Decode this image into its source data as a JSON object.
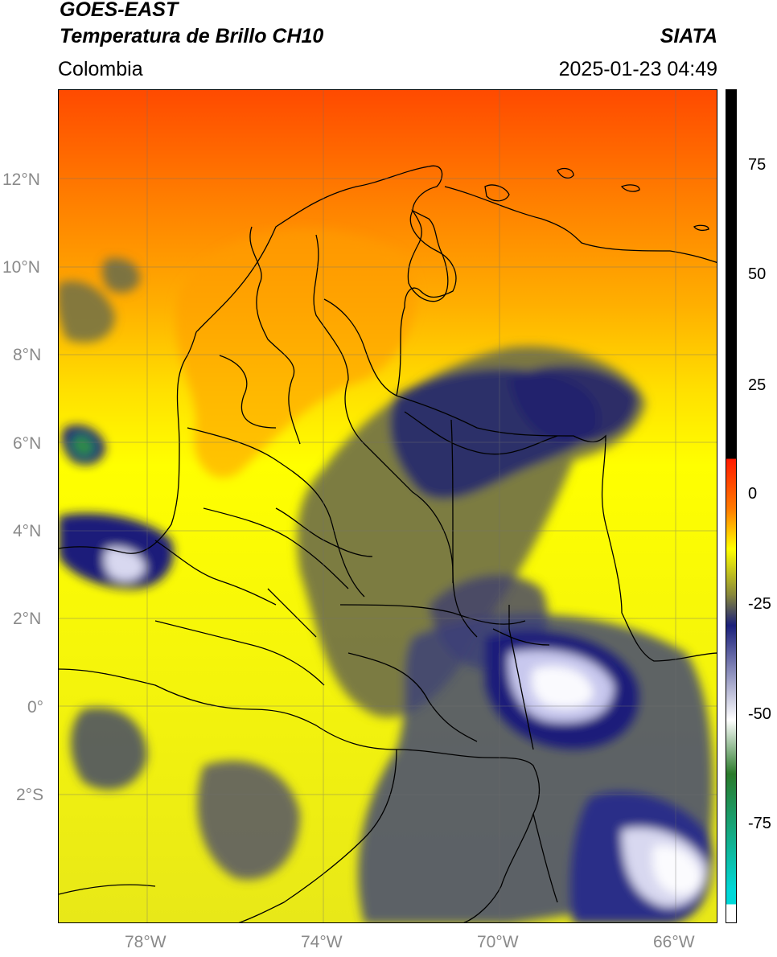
{
  "header": {
    "satellite": "GOES-EAST",
    "product": "Temperatura de Brillo CH10",
    "region": "Colombia",
    "source": "SIATA",
    "timestamp": "2025-01-23 04:49"
  },
  "map": {
    "lat_labels": [
      "12°N",
      "10°N",
      "8°N",
      "6°N",
      "4°N",
      "2°N",
      "0°",
      "2°S"
    ],
    "lon_labels": [
      "78°W",
      "74°W",
      "70°W",
      "66°W"
    ],
    "lon_range": [
      -80,
      -65
    ],
    "lat_range": [
      -4.9,
      14
    ],
    "grid": true
  },
  "colorbar": {
    "ticks": [
      "75",
      "50",
      "25",
      "0",
      "-25",
      "-50",
      "-75"
    ],
    "units_range": [
      -95,
      90
    ],
    "colors": {
      "warm_black": "#000000",
      "red": "#ff1a00",
      "orange": "#ff7a00",
      "yellow": "#ffff00",
      "olive": "#8a8a3a",
      "navy": "#1a1f7a",
      "white": "#ffffff",
      "green": "#2a7a2a",
      "cyan": "#00d8d8"
    }
  }
}
